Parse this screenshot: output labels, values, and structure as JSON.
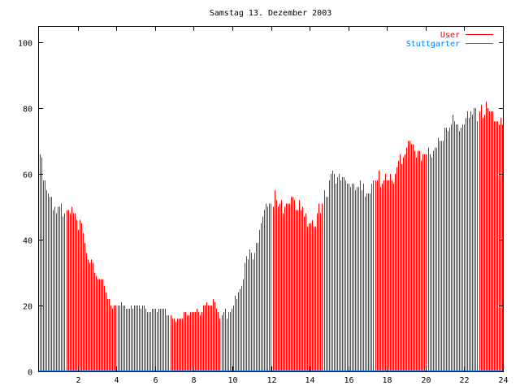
{
  "chart_data": {
    "type": "bar",
    "title": "Samstag 13. Dezember 2003",
    "xlabel": "",
    "ylabel": "",
    "xlim": [
      0,
      24
    ],
    "ylim": [
      0,
      105
    ],
    "x_ticks": [
      2,
      4,
      6,
      8,
      10,
      12,
      14,
      16,
      18,
      20,
      22,
      24
    ],
    "y_ticks": [
      0,
      20,
      40,
      60,
      80,
      100
    ],
    "grid": false,
    "legend_position": "top-right",
    "series": [
      {
        "name": "User",
        "color": "#ff0000",
        "style": "impulses",
        "values": [
          66,
          65,
          58,
          58,
          55,
          54,
          53,
          53,
          49,
          50,
          48,
          50,
          50,
          51,
          47,
          48,
          49,
          49,
          48,
          50,
          48,
          48,
          46,
          43,
          46,
          45,
          42,
          39,
          36,
          34,
          33,
          34,
          33,
          30,
          29,
          28,
          28,
          28,
          28,
          26,
          24,
          22,
          22,
          20,
          19,
          20,
          20,
          20,
          20,
          21,
          20,
          20,
          19,
          19,
          19,
          20,
          19,
          20,
          20,
          20,
          20,
          19,
          20,
          20,
          19,
          18,
          18,
          18,
          19,
          19,
          19,
          18,
          19,
          19,
          19,
          19,
          19,
          17,
          17,
          17,
          16,
          16,
          15,
          16,
          16,
          16,
          16,
          18,
          18,
          17,
          17,
          18,
          18,
          18,
          18,
          19,
          18,
          17,
          18,
          20,
          20,
          21,
          20,
          20,
          20,
          22,
          21,
          19,
          18,
          16,
          17,
          18,
          19,
          16,
          18,
          18,
          19,
          20,
          23,
          22,
          24,
          25,
          26,
          28,
          33,
          35,
          34,
          37,
          36,
          34,
          36,
          39,
          39,
          43,
          45,
          47,
          49,
          51,
          50,
          51,
          51,
          50,
          55,
          52,
          50,
          51,
          52,
          48,
          50,
          51,
          51,
          51,
          53,
          53,
          52,
          49,
          49,
          52,
          49,
          50,
          47,
          48,
          44,
          45,
          45,
          46,
          44,
          44,
          48,
          51,
          48,
          51,
          55,
          53,
          53,
          58,
          60,
          61,
          60,
          57,
          59,
          60,
          58,
          59,
          59,
          58,
          57,
          57,
          56,
          57,
          57,
          55,
          56,
          56,
          58,
          55,
          57,
          53,
          54,
          54,
          54,
          57,
          58,
          58,
          58,
          61,
          56,
          57,
          58,
          60,
          58,
          58,
          60,
          58,
          57,
          60,
          62,
          64,
          66,
          63,
          65,
          66,
          68,
          70,
          70,
          69,
          69,
          67,
          65,
          67,
          67,
          64,
          66,
          66,
          66,
          68,
          66,
          65,
          67,
          68,
          68,
          71,
          70,
          70,
          70,
          74,
          74,
          73,
          74,
          75,
          78,
          76,
          75,
          75,
          73,
          74,
          75,
          75,
          77,
          79,
          77,
          79,
          78,
          80,
          80,
          76,
          79,
          81,
          77,
          78,
          82,
          80,
          79,
          79,
          79,
          76,
          76,
          76,
          75,
          77,
          75
        ]
      },
      {
        "name": "Stuttgarter",
        "color": "#0080ff",
        "style": "lines",
        "constant_value": 0
      }
    ]
  }
}
